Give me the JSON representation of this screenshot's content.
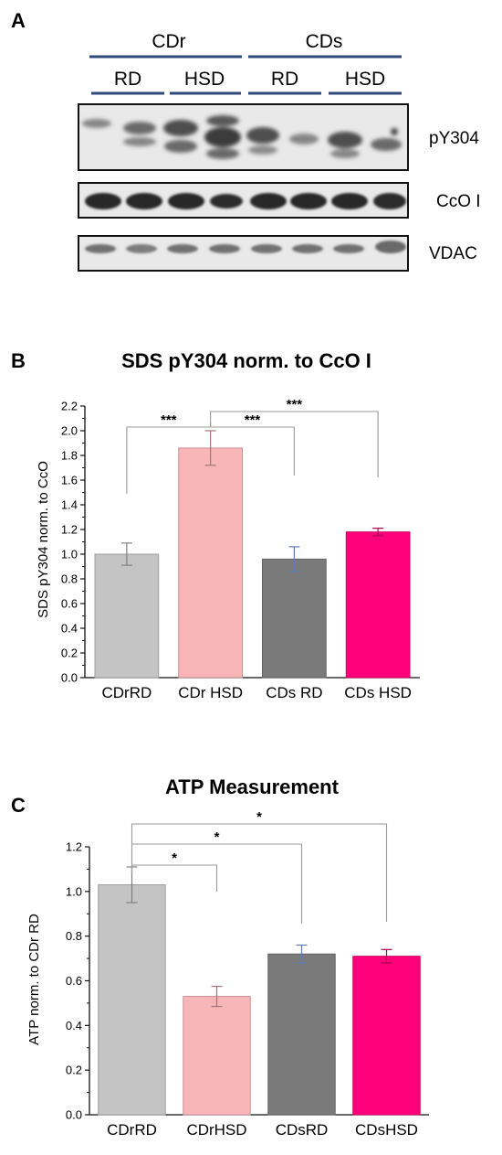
{
  "figure": {
    "panel_a": "A",
    "panel_b": "B",
    "panel_c": "C"
  },
  "blot": {
    "groups": [
      "CDr",
      "CDs"
    ],
    "subgroups": [
      "RD",
      "HSD",
      "RD",
      "HSD"
    ],
    "rows": [
      "pY304",
      "CcO I",
      "VDAC"
    ],
    "line_color": "#2e4a7d"
  },
  "chart_data": [
    {
      "type": "bar",
      "title": "SDS pY304 norm. to CcO I",
      "ylabel": "SDS pY304 norm. to CcO",
      "xlabel": "",
      "categories": [
        "CDrRD",
        "CDr HSD",
        "CDs RD",
        "CDs HSD"
      ],
      "values": [
        1.0,
        1.86,
        0.96,
        1.18
      ],
      "errors": [
        0.09,
        0.14,
        0.1,
        0.03
      ],
      "ylim": [
        0,
        2.2
      ],
      "yticks": [
        "0.0",
        "0.2",
        "0.4",
        "0.6",
        "0.8",
        "1.0",
        "1.2",
        "1.4",
        "1.6",
        "1.8",
        "2.0",
        "2.2"
      ],
      "colors": [
        "#c4c4c4",
        "#f9b6b9",
        "#7a7a7a",
        "#ff007b"
      ],
      "grid": false,
      "significance": [
        {
          "from": 0,
          "to": 1,
          "label": "***"
        },
        {
          "from": 1,
          "to": 2,
          "label": "***"
        },
        {
          "from": 1,
          "to": 3,
          "label": "***"
        }
      ]
    },
    {
      "type": "bar",
      "title": "ATP Measurement",
      "ylabel": "ATP norm. to CDr RD",
      "xlabel": "",
      "categories": [
        "CDrRD",
        "CDrHSD",
        "CDsRD",
        "CDsHSD"
      ],
      "values": [
        1.03,
        0.53,
        0.72,
        0.71
      ],
      "errors": [
        0.08,
        0.045,
        0.04,
        0.03
      ],
      "ylim": [
        0,
        1.2
      ],
      "yticks": [
        "0.0",
        "0.2",
        "0.4",
        "0.6",
        "0.8",
        "1.0",
        "1.2"
      ],
      "colors": [
        "#c4c4c4",
        "#f9b6b9",
        "#7a7a7a",
        "#ff007b"
      ],
      "grid": false,
      "significance": [
        {
          "from": 0,
          "to": 1,
          "label": "*"
        },
        {
          "from": 0,
          "to": 2,
          "label": "*"
        },
        {
          "from": 0,
          "to": 3,
          "label": "*"
        }
      ]
    }
  ]
}
